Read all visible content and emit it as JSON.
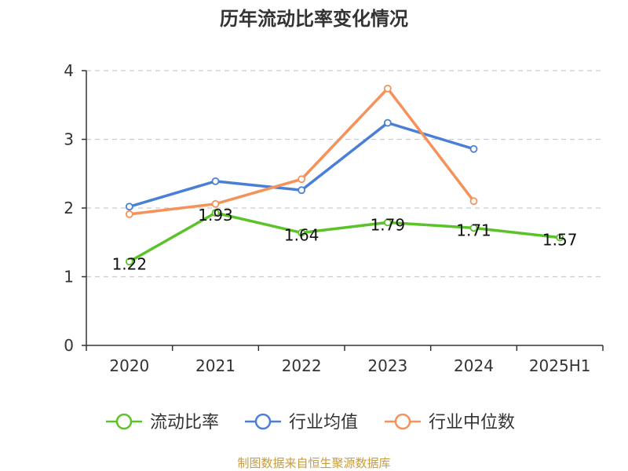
{
  "chart_data": {
    "type": "line",
    "title": "历年流动比率变化情况",
    "categories": [
      "2020",
      "2021",
      "2022",
      "2023",
      "2024",
      "2025H1"
    ],
    "ylim": [
      0,
      4
    ],
    "yticks": [
      "0",
      "1",
      "2",
      "3",
      "4"
    ],
    "grid": true,
    "legend_position": "bottom",
    "series": [
      {
        "name": "流动比率",
        "color": "#5cc22a",
        "values": [
          1.22,
          1.93,
          1.64,
          1.79,
          1.71,
          1.57
        ],
        "labels": [
          "1.22",
          "1.93",
          "1.64",
          "1.79",
          "1.71",
          "1.57"
        ]
      },
      {
        "name": "行业均值",
        "color": "#4a7fd8",
        "values": [
          2.02,
          2.39,
          2.26,
          3.24,
          2.86,
          null
        ]
      },
      {
        "name": "行业中位数",
        "color": "#f4925a",
        "values": [
          1.91,
          2.06,
          2.42,
          3.74,
          2.1,
          null
        ]
      }
    ]
  },
  "source": {
    "text": "制图数据来自恒生聚源数据库",
    "color": "#c89b3c"
  }
}
